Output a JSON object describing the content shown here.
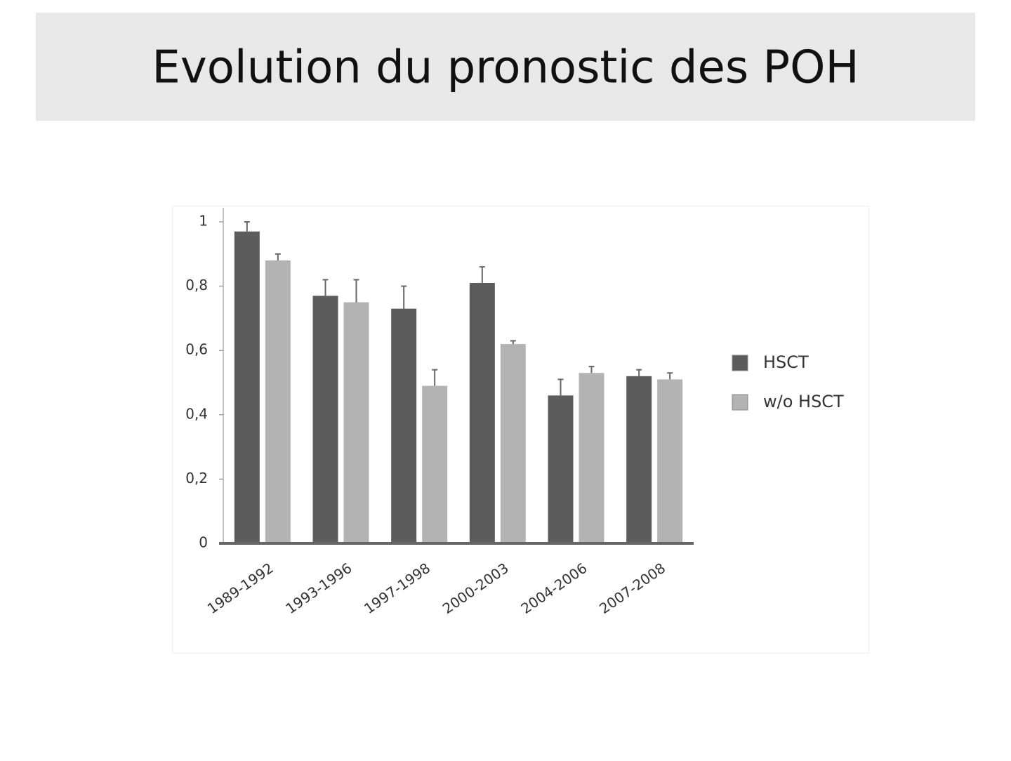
{
  "chart_data": {
    "type": "bar",
    "title": "Evolution du pronostic des POH",
    "categories": [
      "1989-1992",
      "1993-1996",
      "1997-1998",
      "2000-2003",
      "2004-2006",
      "2007-2008"
    ],
    "series": [
      {
        "name": "HSCT",
        "color": "#5c5c5c",
        "values": [
          0.97,
          0.77,
          0.73,
          0.81,
          0.46,
          0.52
        ],
        "errors": [
          0.03,
          0.05,
          0.07,
          0.05,
          0.05,
          0.02
        ]
      },
      {
        "name": "w/o HSCT",
        "color": "#b3b3b3",
        "values": [
          0.88,
          0.75,
          0.49,
          0.62,
          0.53,
          0.51
        ],
        "errors": [
          0.02,
          0.07,
          0.05,
          0.01,
          0.02,
          0.02
        ]
      }
    ],
    "ylim": [
      0,
      1
    ],
    "yticks": [
      0,
      {
        "value": 0.2,
        "label": "0,2"
      },
      {
        "value": 0.4,
        "label": "0,4"
      },
      {
        "value": 0.6,
        "label": "0,6"
      },
      {
        "value": 0.8,
        "label": "0,8"
      },
      1
    ],
    "legend": "right"
  }
}
